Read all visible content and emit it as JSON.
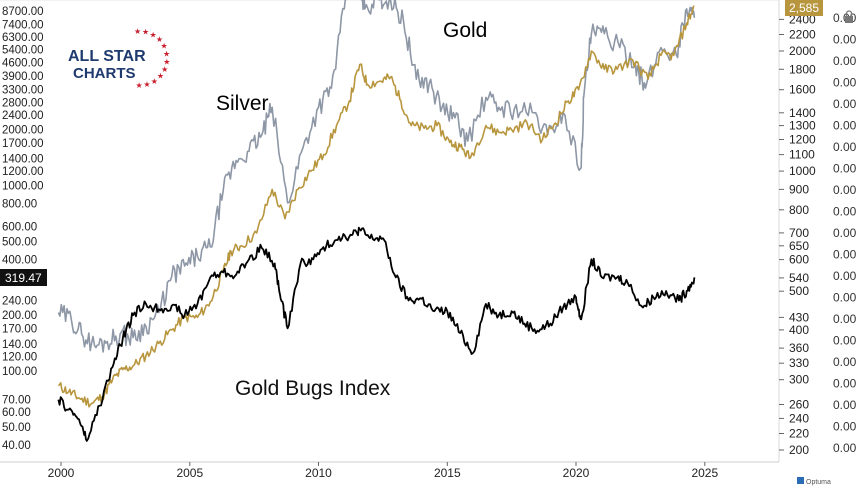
{
  "logo": {
    "line1": "ALL STAR",
    "line2": "CHARTS"
  },
  "watermark": "Optuma",
  "colors": {
    "gold": "#b8963e",
    "silver": "#8e97a6",
    "gdx": "#000000",
    "logo_blue": "#1e3a6e",
    "logo_red": "#c8202f"
  },
  "chart_data": {
    "type": "line",
    "title": "",
    "annotations": [
      "Gold",
      "Silver",
      "Gold Bugs Index"
    ],
    "x_ticks": [
      "2000",
      "2005",
      "2010",
      "2015",
      "2020",
      "2025"
    ],
    "x_range": [
      1999.9,
      2027.6
    ],
    "left_axis": {
      "scale": "log",
      "ticks": [
        "8700.00",
        "7400.00",
        "6300.00",
        "5400.00",
        "4600.00",
        "3900.00",
        "3300.00",
        "2800.00",
        "2400.00",
        "2000.00",
        "1700.00",
        "1400.00",
        "1200.00",
        "1000.00",
        "800.00",
        "600.00",
        "500.00",
        "400.00",
        "240.00",
        "200.00",
        "170.00",
        "140.00",
        "120.00",
        "100.00",
        "70.00",
        "60.00",
        "50.00",
        "40.00"
      ],
      "current_label": "319.47"
    },
    "right_axis": {
      "scale": "log",
      "ticks": [
        "2400",
        "2200",
        "2000",
        "1800",
        "1600",
        "1400",
        "1300",
        "1200",
        "1100",
        "1000",
        "900",
        "800",
        "700",
        "650",
        "600",
        "540",
        "500",
        "430",
        "400",
        "360",
        "330",
        "300",
        "260",
        "240",
        "220",
        "200"
      ],
      "current_label": "2,585"
    },
    "series": [
      {
        "name": "Gold",
        "x": [
          1999.9,
          2000.3,
          2000.7,
          2001.2,
          2001.6,
          2002.0,
          2002.4,
          2002.8,
          2003.3,
          2003.8,
          2004.3,
          2004.8,
          2005.3,
          2005.8,
          2006.3,
          2006.6,
          2007.0,
          2007.6,
          2008.2,
          2008.7,
          2009.2,
          2009.7,
          2010.2,
          2010.7,
          2011.2,
          2011.6,
          2011.9,
          2012.4,
          2012.8,
          2013.2,
          2013.6,
          2014.1,
          2014.6,
          2015.1,
          2015.5,
          2015.9,
          2016.5,
          2017.0,
          2017.5,
          2018.1,
          2018.7,
          2019.2,
          2019.7,
          2020.1,
          2020.6,
          2021.1,
          2021.6,
          2022.2,
          2022.8,
          2023.3,
          2023.8,
          2024.3,
          2024.6
        ],
        "y": [
          290,
          280,
          270,
          262,
          272,
          300,
          318,
          325,
          345,
          370,
          400,
          430,
          430,
          470,
          560,
          630,
          650,
          700,
          900,
          760,
          900,
          1000,
          1100,
          1300,
          1500,
          1850,
          1650,
          1680,
          1720,
          1500,
          1300,
          1280,
          1300,
          1180,
          1150,
          1080,
          1300,
          1250,
          1270,
          1320,
          1200,
          1320,
          1500,
          1600,
          2000,
          1800,
          1800,
          1900,
          1700,
          1950,
          1950,
          2350,
          2585
        ]
      },
      {
        "name": "Silver",
        "x": [
          1999.9,
          2000.4,
          2000.8,
          2001.3,
          2001.8,
          2002.3,
          2002.8,
          2003.3,
          2003.8,
          2004.3,
          2004.8,
          2005.3,
          2005.8,
          2006.3,
          2006.8,
          2007.3,
          2007.8,
          2008.2,
          2008.8,
          2009.4,
          2010.0,
          2010.5,
          2011.0,
          2011.3,
          2011.5,
          2011.8,
          2012.3,
          2012.8,
          2013.3,
          2013.8,
          2014.3,
          2014.8,
          2015.3,
          2015.8,
          2016.5,
          2017.0,
          2017.6,
          2018.3,
          2018.9,
          2019.5,
          2020.2,
          2020.3,
          2020.6,
          2021.1,
          2021.7,
          2022.3,
          2022.7,
          2023.3,
          2023.9,
          2024.3,
          2024.6
        ],
        "y": [
          5.2,
          5.0,
          4.6,
          4.3,
          4.4,
          4.6,
          4.5,
          4.8,
          5.2,
          6.4,
          6.8,
          7.2,
          7.6,
          10.5,
          12.5,
          13.2,
          14.5,
          17.0,
          9.8,
          13.5,
          17.0,
          19.0,
          30.0,
          44.0,
          38.0,
          30.0,
          32.0,
          31.5,
          28.0,
          20.0,
          19.5,
          17.0,
          16.0,
          14.0,
          18.0,
          17.0,
          16.8,
          16.5,
          14.5,
          16.5,
          12.0,
          18.0,
          26.0,
          26.0,
          24.0,
          22.0,
          19.0,
          24.0,
          23.0,
          30.0,
          28.5
        ]
      },
      {
        "name": "Gold Bugs Index",
        "x": [
          1999.9,
          2000.3,
          2000.7,
          2001.0,
          2001.5,
          2002.0,
          2002.4,
          2002.8,
          2003.3,
          2003.8,
          2004.3,
          2004.8,
          2005.3,
          2005.8,
          2006.3,
          2006.8,
          2007.3,
          2007.8,
          2008.3,
          2008.5,
          2008.8,
          2009.3,
          2009.8,
          2010.3,
          2010.8,
          2011.3,
          2011.6,
          2012.0,
          2012.5,
          2013.0,
          2013.5,
          2014.0,
          2014.5,
          2015.0,
          2015.5,
          2016.0,
          2016.5,
          2017.0,
          2017.5,
          2018.0,
          2018.5,
          2019.0,
          2019.5,
          2020.0,
          2020.2,
          2020.6,
          2021.0,
          2021.6,
          2022.0,
          2022.6,
          2023.0,
          2023.5,
          2024.0,
          2024.3,
          2024.6
        ],
        "y": [
          70,
          62,
          55,
          42,
          65,
          105,
          150,
          200,
          230,
          215,
          225,
          200,
          230,
          320,
          340,
          330,
          400,
          460,
          380,
          260,
          170,
          380,
          400,
          470,
          530,
          540,
          580,
          520,
          520,
          320,
          240,
          245,
          210,
          210,
          160,
          125,
          230,
          200,
          210,
          180,
          165,
          180,
          220,
          250,
          190,
          400,
          320,
          320,
          300,
          220,
          250,
          270,
          240,
          270,
          319.47
        ]
      }
    ]
  }
}
